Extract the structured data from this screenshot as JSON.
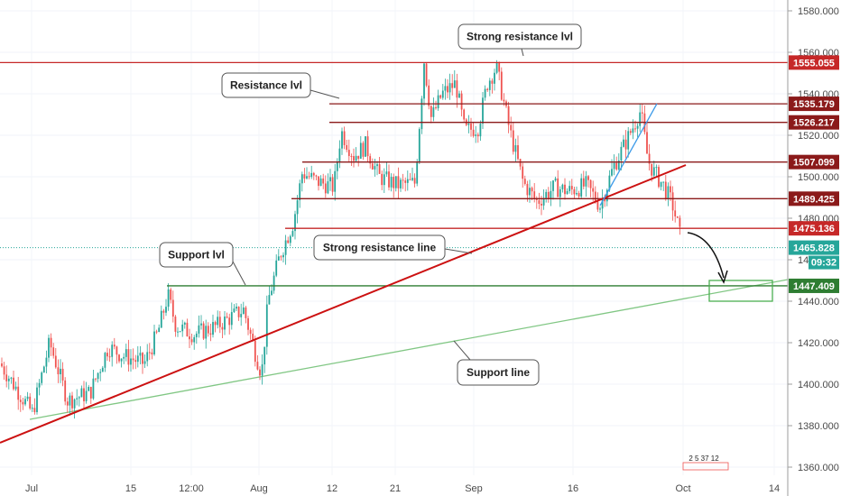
{
  "chart_data": {
    "type": "candlestick",
    "price_axis": {
      "min": 1356,
      "max": 1583,
      "ticks": [
        1580,
        1560,
        1540,
        1520,
        1500,
        1480,
        1460,
        1440,
        1420,
        1400,
        1380,
        1360
      ],
      "tick_labels": [
        "1580.000",
        "1560.000",
        "1540.000",
        "1520.000",
        "1500.000",
        "1480.000",
        "1460.000",
        "1440.000",
        "1420.000",
        "1400.000",
        "1380.000",
        "1360.000"
      ]
    },
    "time_axis": {
      "labels": [
        "Jul",
        "15",
        "12:00",
        "Aug",
        "12",
        "21",
        "Sep",
        "16",
        "Oct",
        "14"
      ]
    },
    "horizontal_levels": [
      {
        "price": 1555.055,
        "label": "1555.055",
        "color": "#c62828"
      },
      {
        "price": 1535.179,
        "label": "1535.179",
        "color": "#8b1a1a"
      },
      {
        "price": 1526.217,
        "label": "1526.217",
        "color": "#8b1a1a"
      },
      {
        "price": 1507.099,
        "label": "1507.099",
        "color": "#8b1a1a"
      },
      {
        "price": 1489.425,
        "label": "1489.425",
        "color": "#8b1a1a"
      },
      {
        "price": 1475.136,
        "label": "1475.136",
        "color": "#c62828"
      },
      {
        "price": 1447.409,
        "label": "1447.409",
        "color": "#2e7d32"
      }
    ],
    "current_price": {
      "price": 1465.828,
      "label": "1465.828",
      "countdown": "09:32",
      "color": "#26a69a"
    },
    "trendlines": [
      {
        "name": "Strong resistance line",
        "color": "#cc1111"
      },
      {
        "name": "Support line",
        "color": "#81c784"
      },
      {
        "name": "short rising line",
        "color": "#3d9be9"
      }
    ],
    "annotations": [
      "Strong resistance lvl",
      "Resistance lvl",
      "Support lvl",
      "Strong resistance line",
      "Support line"
    ],
    "target_zone": {
      "price_low": 1440,
      "price_high": 1450,
      "color": "#4caf50"
    },
    "up_color": "#26a69a",
    "down_color": "#ef5350",
    "bottom_indicator_text": "2  5 37 12"
  }
}
